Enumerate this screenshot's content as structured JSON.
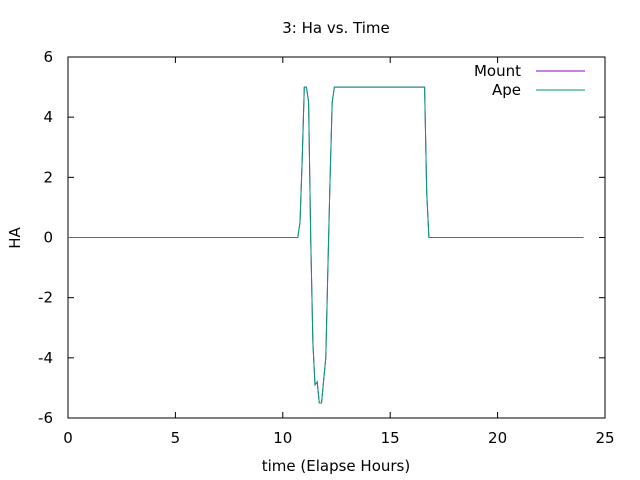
{
  "chart_data": {
    "type": "line",
    "title": "3: Ha vs. Time",
    "xlabel": "time (Elapse Hours)",
    "ylabel": "HA",
    "xlim": [
      0,
      25
    ],
    "ylim": [
      -6,
      6
    ],
    "xticks": [
      0,
      5,
      10,
      15,
      20,
      25
    ],
    "yticks": [
      -6,
      -4,
      -2,
      0,
      2,
      4,
      6
    ],
    "grid": false,
    "legend_position": "top-right",
    "series": [
      {
        "name": "Mount",
        "color": "#9400d3",
        "x": [
          0,
          10.7,
          10.8,
          10.9,
          11.0,
          11.1,
          11.2,
          11.3,
          11.4,
          11.5,
          11.6,
          11.7,
          11.8,
          12.0,
          12.1,
          12.2,
          12.3,
          12.4,
          12.5,
          16.6,
          16.7,
          16.8,
          24
        ],
        "y": [
          0,
          0,
          0.5,
          2.5,
          5.0,
          5.0,
          4.5,
          0,
          -3.5,
          -4.9,
          -4.8,
          -5.5,
          -5.5,
          -4.0,
          -1.0,
          2.0,
          4.5,
          5.0,
          5.0,
          5.0,
          1.5,
          0,
          0
        ]
      },
      {
        "name": "Ape",
        "color": "#009e73",
        "x": [
          0,
          10.7,
          10.8,
          10.9,
          11.0,
          11.1,
          11.2,
          11.3,
          11.4,
          11.5,
          11.6,
          11.7,
          11.8,
          12.0,
          12.1,
          12.2,
          12.3,
          12.4,
          12.5,
          16.6,
          16.7,
          16.8,
          24
        ],
        "y": [
          0,
          0,
          0.5,
          2.5,
          5.0,
          5.0,
          4.5,
          0,
          -3.5,
          -4.9,
          -4.8,
          -5.5,
          -5.5,
          -4.0,
          -1.0,
          2.0,
          4.5,
          5.0,
          5.0,
          5.0,
          1.5,
          0,
          0
        ]
      }
    ]
  }
}
